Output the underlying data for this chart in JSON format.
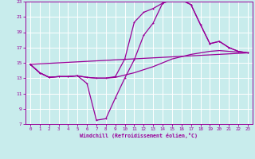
{
  "xlabel": "Windchill (Refroidissement éolien,°C)",
  "bg_color": "#c8ecec",
  "grid_color": "#ffffff",
  "line_color": "#990099",
  "xlim": [
    -0.5,
    23.5
  ],
  "ylim": [
    7,
    23
  ],
  "xticks": [
    0,
    1,
    2,
    3,
    4,
    5,
    6,
    7,
    8,
    9,
    10,
    11,
    12,
    13,
    14,
    15,
    16,
    17,
    18,
    19,
    20,
    21,
    22,
    23
  ],
  "yticks": [
    7,
    9,
    11,
    13,
    15,
    17,
    19,
    21,
    23
  ],
  "line1_x": [
    0,
    1,
    2,
    3,
    4,
    5,
    6,
    7,
    8,
    9,
    10,
    11,
    12,
    13,
    14,
    15,
    16,
    17,
    18,
    19,
    20,
    21,
    22,
    23
  ],
  "line1_y": [
    14.8,
    13.7,
    13.1,
    13.2,
    13.2,
    13.3,
    12.3,
    7.5,
    7.7,
    10.4,
    13.0,
    15.4,
    18.6,
    20.2,
    22.8,
    23.2,
    23.2,
    22.6,
    20.0,
    17.5,
    17.8,
    17.0,
    16.5,
    16.3
  ],
  "line2_x": [
    0,
    1,
    2,
    3,
    4,
    5,
    6,
    7,
    8,
    9,
    10,
    11,
    12,
    13,
    14,
    15,
    16,
    17,
    18,
    19,
    20,
    21,
    22,
    23
  ],
  "line2_y": [
    14.8,
    13.7,
    13.1,
    13.2,
    13.2,
    13.3,
    13.1,
    13.0,
    13.0,
    13.1,
    13.4,
    13.7,
    14.1,
    14.5,
    15.0,
    15.5,
    15.8,
    16.1,
    16.3,
    16.5,
    16.6,
    16.5,
    16.4,
    16.3
  ],
  "line3_x": [
    0,
    23
  ],
  "line3_y": [
    14.8,
    16.3
  ],
  "line4_x": [
    0,
    1,
    2,
    3,
    4,
    5,
    6,
    7,
    8,
    9,
    10,
    11,
    12,
    13,
    14,
    15,
    16,
    17,
    18,
    19,
    20,
    21,
    22,
    23
  ],
  "line4_y": [
    14.8,
    13.7,
    13.1,
    13.2,
    13.2,
    13.3,
    13.1,
    13.0,
    13.0,
    13.2,
    15.5,
    20.3,
    21.6,
    22.1,
    22.8,
    23.2,
    23.2,
    22.6,
    20.0,
    17.5,
    17.8,
    17.0,
    16.5,
    16.3
  ]
}
